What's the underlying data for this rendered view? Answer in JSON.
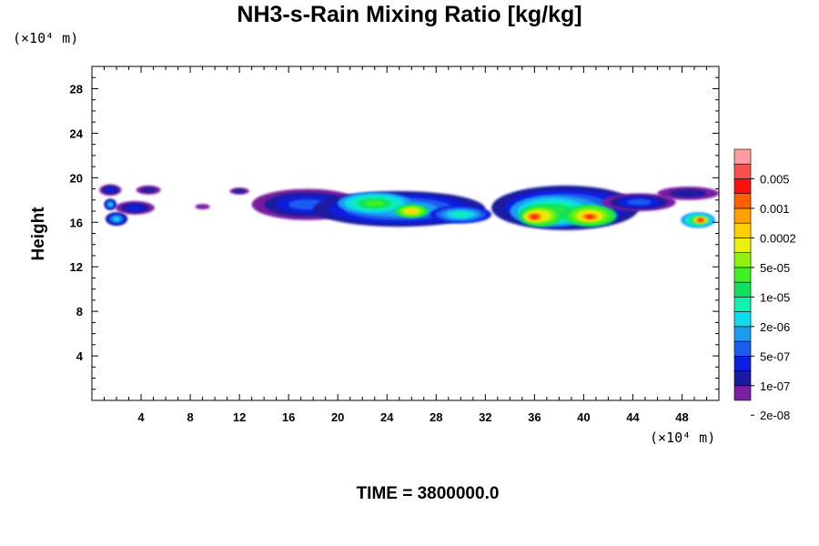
{
  "chart_data": {
    "type": "heatmap",
    "title": "NH3-s-Rain Mixing Ratio [kg/kg]",
    "xlabel": "",
    "ylabel": "Height",
    "x_unit": "(×10⁴ m)",
    "y_unit": "(×10⁴ m)",
    "xlim": [
      0,
      51
    ],
    "ylim": [
      0,
      30
    ],
    "x_ticks": [
      "4",
      "8",
      "12",
      "16",
      "20",
      "24",
      "28",
      "32",
      "36",
      "40",
      "44",
      "48"
    ],
    "y_ticks": [
      "4",
      "8",
      "12",
      "16",
      "20",
      "24",
      "28"
    ],
    "colorbar": {
      "labels": [
        "0.005",
        "0.001",
        "0.0002",
        "5e-05",
        "1e-05",
        "2e-06",
        "5e-07",
        "1e-07",
        "2e-08"
      ],
      "colors": [
        "#7a1fa0",
        "#1a1aa0",
        "#0a1fe0",
        "#1a5cf0",
        "#1a9cf0",
        "#10dcf0",
        "#10f0b0",
        "#10e060",
        "#40f020",
        "#90f010",
        "#e8f010",
        "#ffd000",
        "#ffa000",
        "#ff6000",
        "#ff1010",
        "#ff5050",
        "#ff9ca0"
      ]
    },
    "blobs": [
      {
        "x": 1.5,
        "y": 18.9,
        "rx": 0.9,
        "ry": 0.5,
        "level": 2
      },
      {
        "x": 2.0,
        "y": 16.3,
        "rx": 0.9,
        "ry": 0.6,
        "level": 5
      },
      {
        "x": 1.5,
        "y": 17.6,
        "rx": 0.5,
        "ry": 0.5,
        "level": 5
      },
      {
        "x": 3.5,
        "y": 17.3,
        "rx": 1.6,
        "ry": 0.6,
        "level": 2
      },
      {
        "x": 4.6,
        "y": 18.9,
        "rx": 1.0,
        "ry": 0.4,
        "level": 1
      },
      {
        "x": 9.0,
        "y": 17.4,
        "rx": 0.6,
        "ry": 0.25,
        "level": 0
      },
      {
        "x": 12.0,
        "y": 18.8,
        "rx": 0.8,
        "ry": 0.3,
        "level": 1
      },
      {
        "x": 17.5,
        "y": 17.6,
        "rx": 4.5,
        "ry": 1.4,
        "level": 3
      },
      {
        "x": 25.0,
        "y": 17.2,
        "rx": 7.0,
        "ry": 1.6,
        "level": 5
      },
      {
        "x": 23.0,
        "y": 17.7,
        "rx": 3.0,
        "ry": 1.0,
        "level": 8
      },
      {
        "x": 26.0,
        "y": 17.0,
        "rx": 1.4,
        "ry": 0.6,
        "level": 11
      },
      {
        "x": 30.0,
        "y": 16.7,
        "rx": 2.5,
        "ry": 0.8,
        "level": 6
      },
      {
        "x": 38.5,
        "y": 17.3,
        "rx": 6.0,
        "ry": 2.0,
        "level": 5
      },
      {
        "x": 37.5,
        "y": 17.0,
        "rx": 3.5,
        "ry": 1.4,
        "level": 8
      },
      {
        "x": 36.5,
        "y": 16.6,
        "rx": 1.8,
        "ry": 1.0,
        "level": 11
      },
      {
        "x": 40.5,
        "y": 16.6,
        "rx": 2.2,
        "ry": 1.0,
        "level": 11
      },
      {
        "x": 36.0,
        "y": 16.5,
        "rx": 0.9,
        "ry": 0.5,
        "level": 14
      },
      {
        "x": 40.5,
        "y": 16.5,
        "rx": 1.0,
        "ry": 0.4,
        "level": 14
      },
      {
        "x": 44.5,
        "y": 17.8,
        "rx": 3.0,
        "ry": 0.8,
        "level": 3
      },
      {
        "x": 48.5,
        "y": 18.6,
        "rx": 2.5,
        "ry": 0.6,
        "level": 1
      },
      {
        "x": 49.3,
        "y": 16.2,
        "rx": 1.4,
        "ry": 0.7,
        "level": 8
      },
      {
        "x": 49.5,
        "y": 16.2,
        "rx": 0.6,
        "ry": 0.3,
        "level": 14
      }
    ]
  },
  "time_label": "TIME = 3800000.0"
}
